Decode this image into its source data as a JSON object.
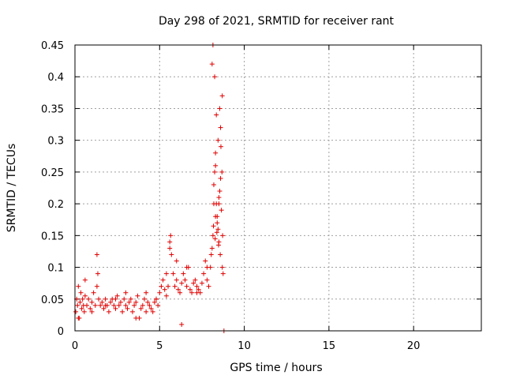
{
  "chart_data": {
    "type": "scatter",
    "title": "Day 298 of 2021, SRMTID for receiver rant",
    "xlabel": "GPS time / hours",
    "ylabel": "SRMTID / TECUs",
    "xlim": [
      0,
      24
    ],
    "ylim": [
      0,
      0.45
    ],
    "grid": true,
    "marker": "+",
    "color": "#e00000",
    "xticks": [
      0,
      5,
      10,
      15,
      20
    ],
    "xtick_labels": [
      "0",
      "5",
      "10",
      "15",
      "20"
    ],
    "yticks": [
      0,
      0.05,
      0.1,
      0.15,
      0.2,
      0.25,
      0.3,
      0.35,
      0.4,
      0.45
    ],
    "ytick_labels": [
      "0",
      "0.05",
      "0.1",
      "0.15",
      "0.2",
      "0.25",
      "0.3",
      "0.35",
      "0.4",
      "0.45"
    ],
    "series": [
      {
        "name": "SRMTID",
        "x": [
          0.05,
          0.1,
          0.15,
          0.2,
          0.25,
          0.3,
          0.35,
          0.4,
          0.45,
          0.5,
          0.55,
          0.6,
          0.7,
          0.8,
          0.9,
          1.0,
          1.1,
          1.2,
          1.3,
          1.35,
          1.4,
          1.5,
          1.6,
          1.7,
          1.8,
          1.9,
          2.0,
          2.1,
          2.2,
          2.3,
          2.4,
          2.5,
          2.6,
          2.7,
          2.8,
          2.9,
          3.0,
          3.1,
          3.2,
          3.3,
          3.4,
          3.5,
          3.6,
          3.7,
          3.8,
          3.9,
          4.0,
          4.1,
          4.2,
          4.3,
          4.4,
          4.5,
          4.6,
          4.7,
          4.8,
          4.9,
          5.0,
          5.1,
          5.2,
          5.3,
          5.4,
          5.5,
          5.6,
          5.65,
          5.7,
          5.8,
          5.9,
          6.0,
          6.1,
          6.2,
          6.3,
          6.4,
          6.5,
          6.6,
          6.7,
          6.8,
          6.9,
          7.0,
          7.1,
          7.2,
          7.3,
          7.4,
          7.5,
          7.6,
          7.7,
          7.8,
          7.9,
          8.0,
          8.05,
          8.1,
          8.15,
          8.2,
          8.25,
          8.3,
          8.35,
          8.4,
          8.45,
          8.5,
          8.55,
          8.6,
          8.65,
          8.7,
          8.75,
          8.8,
          0.2,
          0.6,
          1.0,
          1.3,
          1.8,
          2.4,
          3.0,
          3.6,
          4.2,
          4.8,
          5.4,
          6.0,
          6.6,
          7.2,
          7.8,
          8.3,
          8.5,
          8.6,
          8.7,
          8.55,
          8.45,
          8.35,
          8.25,
          8.15,
          8.1,
          8.2,
          8.3,
          8.4,
          8.5,
          8.62,
          8.68,
          8.72,
          8.58,
          8.48,
          8.38,
          8.28,
          8.18,
          6.3,
          5.6
        ],
        "y": [
          0.03,
          0.05,
          0.04,
          0.07,
          0.02,
          0.045,
          0.06,
          0.035,
          0.05,
          0.04,
          0.03,
          0.055,
          0.04,
          0.05,
          0.035,
          0.045,
          0.06,
          0.04,
          0.12,
          0.09,
          0.05,
          0.04,
          0.045,
          0.035,
          0.05,
          0.04,
          0.03,
          0.045,
          0.05,
          0.04,
          0.035,
          0.055,
          0.04,
          0.045,
          0.03,
          0.05,
          0.04,
          0.035,
          0.045,
          0.05,
          0.03,
          0.04,
          0.045,
          0.055,
          0.02,
          0.035,
          0.04,
          0.05,
          0.06,
          0.045,
          0.04,
          0.035,
          0.03,
          0.045,
          0.05,
          0.04,
          0.06,
          0.07,
          0.08,
          0.065,
          0.055,
          0.07,
          0.14,
          0.15,
          0.12,
          0.09,
          0.07,
          0.08,
          0.065,
          0.06,
          0.075,
          0.09,
          0.08,
          0.07,
          0.1,
          0.065,
          0.06,
          0.075,
          0.08,
          0.07,
          0.065,
          0.06,
          0.075,
          0.09,
          0.11,
          0.08,
          0.07,
          0.1,
          0.12,
          0.13,
          0.15,
          0.2,
          0.25,
          0.28,
          0.2,
          0.18,
          0.16,
          0.14,
          0.22,
          0.24,
          0.19,
          0.1,
          0.09,
          0.0,
          0.02,
          0.08,
          0.03,
          0.07,
          0.04,
          0.05,
          0.06,
          0.02,
          0.03,
          0.05,
          0.09,
          0.11,
          0.1,
          0.06,
          0.1,
          0.18,
          0.2,
          0.32,
          0.37,
          0.35,
          0.3,
          0.34,
          0.4,
          0.45,
          0.42,
          0.23,
          0.26,
          0.17,
          0.21,
          0.29,
          0.25,
          0.15,
          0.12,
          0.135,
          0.155,
          0.145,
          0.165,
          0.01,
          0.13
        ]
      }
    ]
  }
}
